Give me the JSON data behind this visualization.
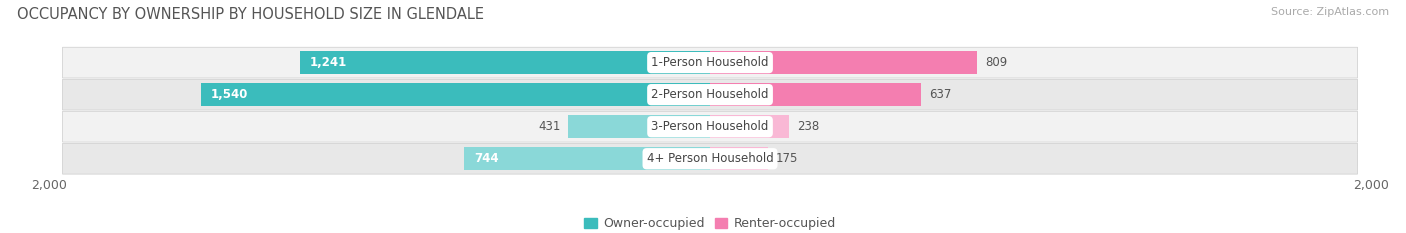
{
  "title": "OCCUPANCY BY OWNERSHIP BY HOUSEHOLD SIZE IN GLENDALE",
  "source": "Source: ZipAtlas.com",
  "categories": [
    "1-Person Household",
    "2-Person Household",
    "3-Person Household",
    "4+ Person Household"
  ],
  "owner_values": [
    1241,
    1540,
    431,
    744
  ],
  "renter_values": [
    809,
    637,
    238,
    175
  ],
  "max_scale": 2000,
  "owner_color": "#3BBCBC",
  "renter_color": "#F47EB0",
  "owner_color_light": "#8AD8D8",
  "renter_color_light": "#F9B8D5",
  "row_colors": [
    "#F2F2F2",
    "#E8E8E8"
  ],
  "title_fontsize": 10.5,
  "tick_fontsize": 9,
  "bar_label_fontsize": 8.5,
  "cat_label_fontsize": 8.5,
  "legend_fontsize": 9,
  "source_fontsize": 8,
  "legend_labels": [
    "Owner-occupied",
    "Renter-occupied"
  ]
}
